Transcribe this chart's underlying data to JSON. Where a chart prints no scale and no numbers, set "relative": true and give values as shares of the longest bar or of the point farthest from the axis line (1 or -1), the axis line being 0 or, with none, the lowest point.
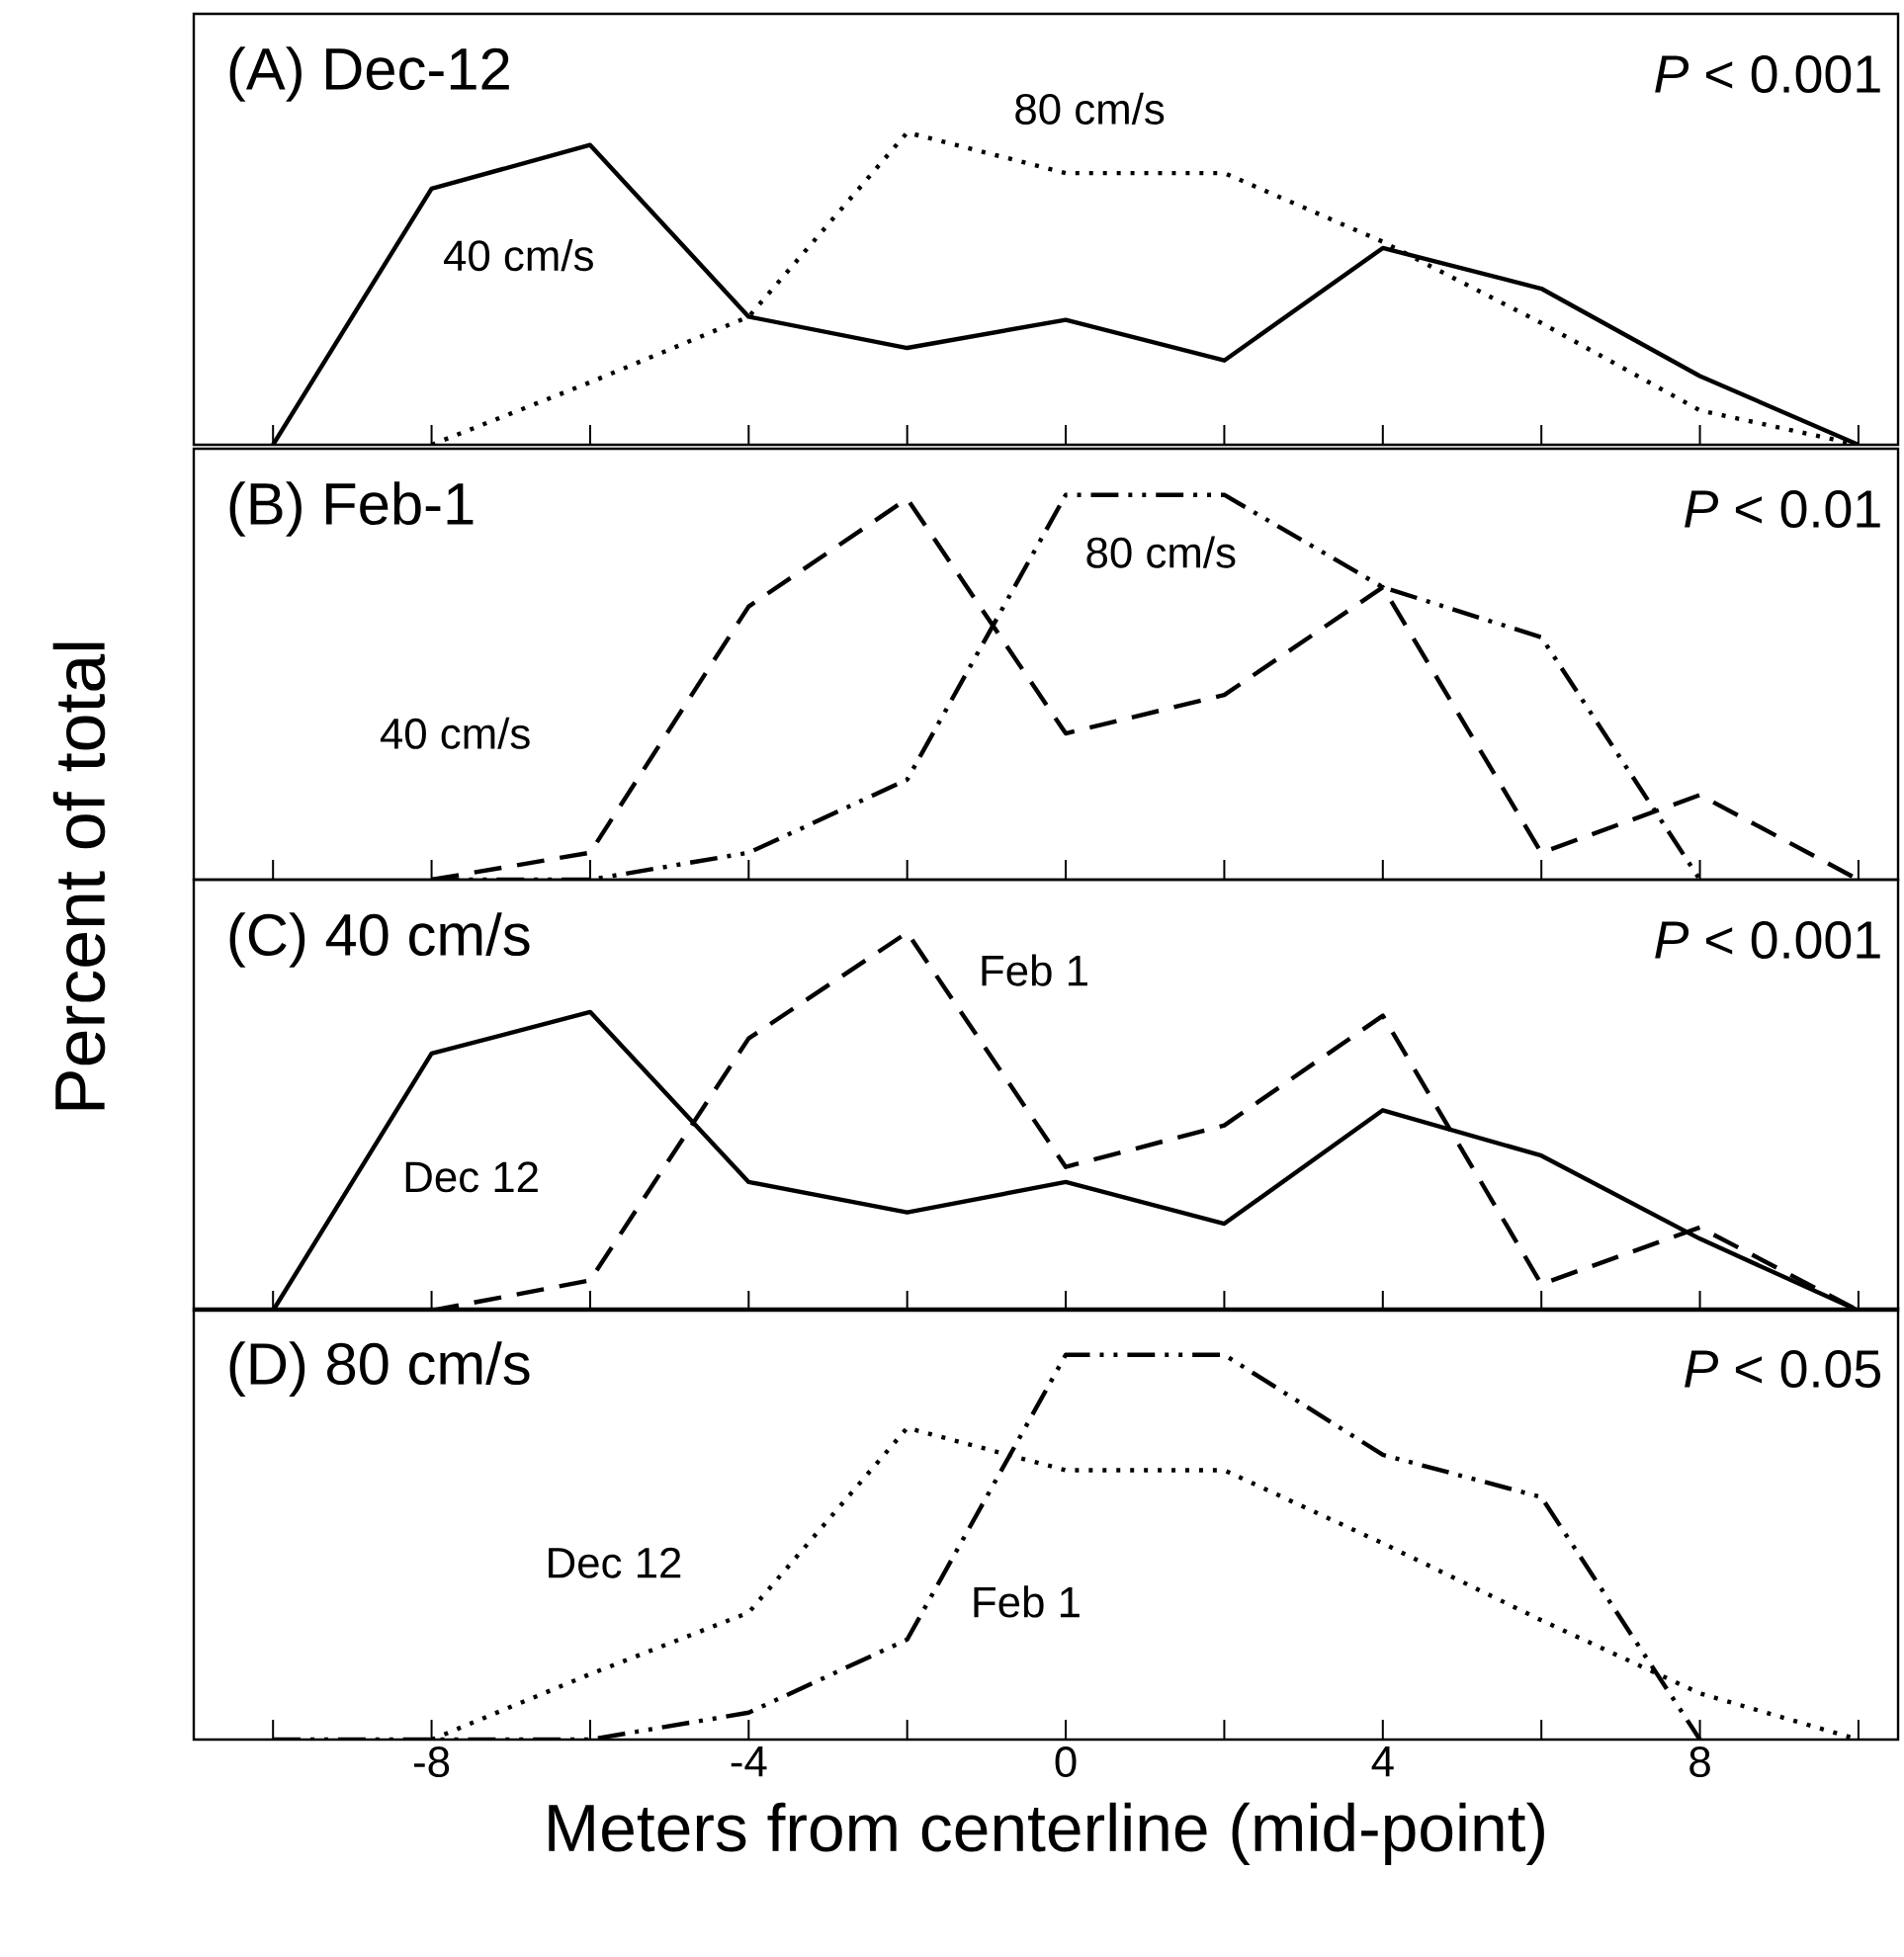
{
  "chart_data": [
    {
      "type": "line",
      "title": "(A) Dec-12",
      "ylabel": "Percent of total",
      "annotations": [
        "*P* < 0.001"
      ],
      "relative": true,
      "xlim": [
        -11,
        10.5
      ],
      "xticks": [
        {
          "value": -10,
          "label": null
        },
        -8,
        {
          "value": -6,
          "label": null
        },
        -4,
        {
          "value": -2,
          "label": null
        },
        0,
        {
          "value": 2,
          "label": null
        },
        4,
        {
          "value": 6,
          "label": null
        },
        8,
        {
          "value": 10,
          "label": null
        }
      ],
      "tick_labels": false,
      "marker": "none",
      "grid": false,
      "series": [
        {
          "name": "40 cm/s",
          "color": "#000000",
          "line_style": "solid",
          "x": [
            -10,
            -8,
            -6,
            -4,
            -2,
            0,
            2,
            4,
            6,
            8,
            10
          ],
          "values": [
            0,
            0.82,
            0.96,
            0.41,
            0.31,
            0.4,
            0.27,
            0.63,
            0.5,
            0.22,
            0
          ]
        },
        {
          "name": "80 cm/s",
          "color": "#000000",
          "line_style": "dotted",
          "x": [
            -8,
            -6,
            -4,
            -2,
            0,
            2,
            4,
            6,
            8,
            10
          ],
          "values": [
            0,
            0.2,
            0.41,
            1,
            0.87,
            0.87,
            0.65,
            0.39,
            0.11,
            0
          ]
        }
      ]
    },
    {
      "type": "line",
      "title": "(B) Feb-1",
      "annotations": [
        "*P* < 0.01"
      ],
      "relative": true,
      "xlim": [
        -11,
        10.5
      ],
      "xticks": [
        {
          "value": -10,
          "label": null
        },
        -8,
        {
          "value": -6,
          "label": null
        },
        -4,
        {
          "value": -2,
          "label": null
        },
        0,
        {
          "value": 2,
          "label": null
        },
        4,
        {
          "value": 6,
          "label": null
        },
        8,
        {
          "value": 10,
          "label": null
        }
      ],
      "tick_labels": false,
      "marker": "none",
      "grid": false,
      "series": [
        {
          "name": "40 cm/s",
          "color": "#000000",
          "line_style": "dashed",
          "x": [
            -8,
            -6,
            -4,
            -2,
            0,
            2,
            4,
            6,
            8,
            10
          ],
          "values": [
            0,
            0.07,
            0.71,
            0.99,
            0.38,
            0.48,
            0.76,
            0.07,
            0.22,
            0
          ]
        },
        {
          "name": "80 cm/s",
          "color": "#000000",
          "line_style": "dashdot",
          "x": [
            -8,
            -6,
            -4,
            -2,
            0,
            2,
            4,
            6,
            8
          ],
          "values": [
            0,
            0,
            0.07,
            0.26,
            1,
            1,
            0.76,
            0.63,
            0
          ]
        }
      ]
    },
    {
      "type": "line",
      "title": "(C) 40 cm/s",
      "annotations": [
        "*P* < 0.001"
      ],
      "relative": true,
      "xlim": [
        -11,
        10.5
      ],
      "xticks": [
        {
          "value": -10,
          "label": null
        },
        -8,
        {
          "value": -6,
          "label": null
        },
        -4,
        {
          "value": -2,
          "label": null
        },
        0,
        {
          "value": 2,
          "label": null
        },
        4,
        {
          "value": 6,
          "label": null
        },
        8,
        {
          "value": 10,
          "label": null
        }
      ],
      "tick_labels": false,
      "marker": "none",
      "grid": false,
      "series": [
        {
          "name": "Dec 12",
          "color": "#000000",
          "line_style": "solid",
          "x": [
            -10,
            -8,
            -6,
            -4,
            -2,
            0,
            2,
            4,
            6,
            8,
            10
          ],
          "values": [
            0,
            0.68,
            0.79,
            0.34,
            0.26,
            0.34,
            0.23,
            0.53,
            0.41,
            0.19,
            0
          ]
        },
        {
          "name": "Feb 1",
          "color": "#000000",
          "line_style": "dashed",
          "x": [
            -8,
            -6,
            -4,
            -2,
            0,
            2,
            4,
            6,
            8,
            10
          ],
          "values": [
            0,
            0.08,
            0.72,
            1,
            0.38,
            0.49,
            0.78,
            0.07,
            0.22,
            0
          ]
        }
      ]
    },
    {
      "type": "line",
      "title": "(D) 80 cm/s",
      "xlabel": "Meters from centerline (mid-point)",
      "annotations": [
        "*P* < 0.05"
      ],
      "relative": true,
      "xlim": [
        -11,
        10.5
      ],
      "xticks": [
        {
          "value": -10,
          "label": null
        },
        -8,
        {
          "value": -6,
          "label": null
        },
        -4,
        {
          "value": -2,
          "label": null
        },
        0,
        {
          "value": 2,
          "label": null
        },
        4,
        {
          "value": 6,
          "label": null
        },
        8,
        {
          "value": 10,
          "label": null
        }
      ],
      "tick_labels": "x",
      "marker": "none",
      "grid": false,
      "series": [
        {
          "name": "Dec 12",
          "color": "#000000",
          "line_style": "dotted",
          "x": [
            -8,
            -6,
            -4,
            -2,
            0,
            2,
            4,
            6,
            8,
            10
          ],
          "values": [
            0,
            0.17,
            0.33,
            0.81,
            0.7,
            0.7,
            0.51,
            0.31,
            0.12,
            0
          ]
        },
        {
          "name": "Feb 1",
          "color": "#000000",
          "line_style": "dashdot",
          "x": [
            -10,
            -8,
            -6,
            -4,
            -2,
            0,
            2,
            4,
            6,
            8
          ],
          "values": [
            0,
            0,
            0,
            0.07,
            0.26,
            1,
            1,
            0.74,
            0.63,
            0
          ]
        }
      ]
    }
  ]
}
